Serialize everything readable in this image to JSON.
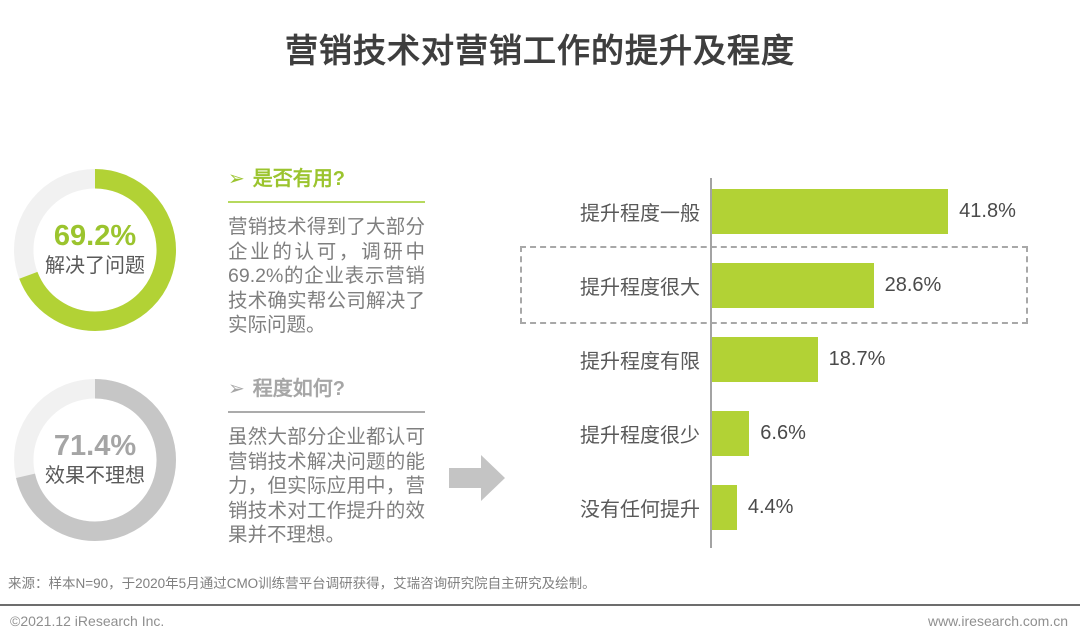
{
  "title": "营销技术对营销工作的提升及程度",
  "colors": {
    "green": "#b2d235",
    "green_text": "#9bc42e",
    "gray_ring": "#c6c6c6",
    "track": "#f1f1f1",
    "label_text": "#595959",
    "body_text": "#7f7f7f"
  },
  "donuts": [
    {
      "value": 69.2,
      "value_label": "69.2%",
      "caption": "解决了问题",
      "color": "#b2d235",
      "track_color": "#f1f1f1",
      "text_color": "#9bc42e"
    },
    {
      "value": 71.4,
      "value_label": "71.4%",
      "caption": "效果不理想",
      "color": "#c6c6c6",
      "track_color": "#f1f1f1",
      "text_color": "#a5a5a5"
    }
  ],
  "notes": [
    {
      "bullet": "➢",
      "heading": "是否有用?",
      "body": "营销技术得到了大部分企业的认可，调研中69.2%的企业表示营销技术确实帮公司解决了实际问题。",
      "accent": "#9bc42e",
      "line_color": "#b6d95e"
    },
    {
      "bullet": "➢",
      "heading": "程度如何?",
      "body": "虽然大部分企业都认可营销技术解决问题的能力，但实际应用中，营销技术对工作提升的效果并不理想。",
      "accent": "#a6a6a6",
      "line_color": "#ababab"
    }
  ],
  "chart_data": {
    "type": "bar",
    "orientation": "horizontal",
    "title": "",
    "categories": [
      "提升程度一般",
      "提升程度很大",
      "提升程度有限",
      "提升程度很少",
      "没有任何提升"
    ],
    "values": [
      41.8,
      28.6,
      18.7,
      6.6,
      4.4
    ],
    "value_labels": [
      "41.8%",
      "28.6%",
      "18.7%",
      "6.6%",
      "4.4%"
    ],
    "highlight_index": 1,
    "bar_color": "#b2d235",
    "xlim": [
      0,
      45
    ],
    "grid": false,
    "legend": null
  },
  "source": "来源：样本N=90，于2020年5月通过CMO训练营平台调研获得，艾瑞咨询研究院自主研究及绘制。",
  "footer": {
    "left": "©2021.12 iResearch Inc.",
    "right": "www.iresearch.com.cn"
  }
}
